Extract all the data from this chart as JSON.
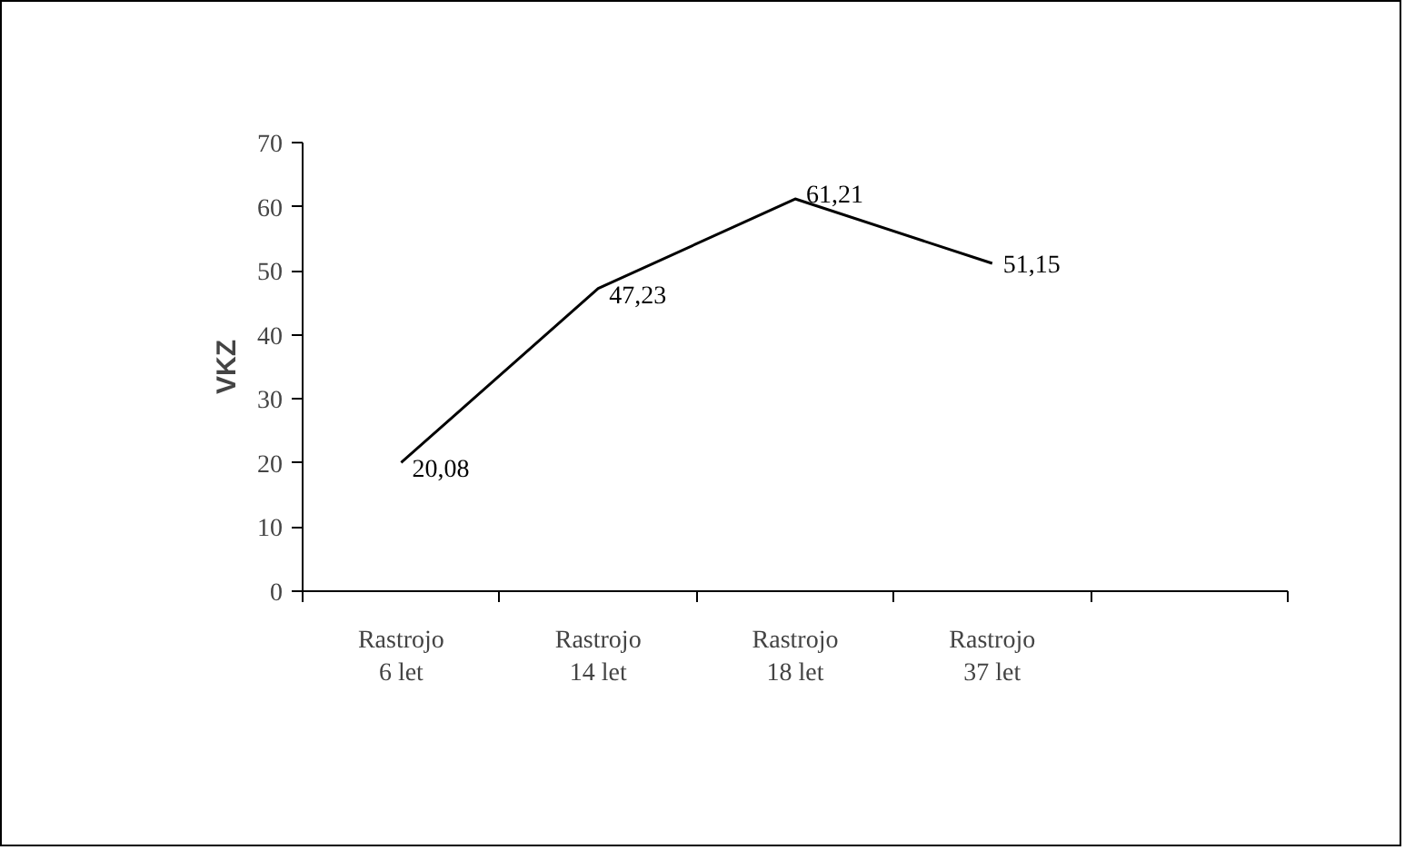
{
  "chart_data": {
    "type": "line",
    "ylabel": "VKZ",
    "categories": [
      "Rastrojo\n6 let",
      "Rastrojo\n14 let",
      "Rastrojo\n18 let",
      "Rastrojo\n37 let",
      null
    ],
    "values": [
      20.08,
      47.23,
      61.21,
      51.15,
      null
    ],
    "value_labels": [
      "20,08",
      "47,23",
      "61,21",
      "51,15",
      null
    ],
    "color": "#000000",
    "ylim": [
      0,
      70
    ],
    "yticks": [
      0,
      10,
      20,
      30,
      40,
      50,
      60,
      70
    ],
    "grid": false,
    "marker": "none",
    "line_style": "solid"
  }
}
